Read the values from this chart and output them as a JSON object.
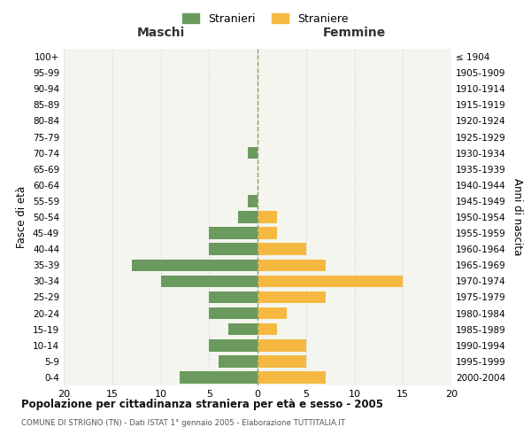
{
  "age_groups": [
    "0-4",
    "5-9",
    "10-14",
    "15-19",
    "20-24",
    "25-29",
    "30-34",
    "35-39",
    "40-44",
    "45-49",
    "50-54",
    "55-59",
    "60-64",
    "65-69",
    "70-74",
    "75-79",
    "80-84",
    "85-89",
    "90-94",
    "95-99",
    "100+"
  ],
  "birth_years": [
    "2000-2004",
    "1995-1999",
    "1990-1994",
    "1985-1989",
    "1980-1984",
    "1975-1979",
    "1970-1974",
    "1965-1969",
    "1960-1964",
    "1955-1959",
    "1950-1954",
    "1945-1949",
    "1940-1944",
    "1935-1939",
    "1930-1934",
    "1925-1929",
    "1920-1924",
    "1915-1919",
    "1910-1914",
    "1905-1909",
    "≤ 1904"
  ],
  "maschi": [
    8,
    4,
    5,
    3,
    5,
    5,
    10,
    13,
    5,
    5,
    2,
    1,
    0,
    0,
    1,
    0,
    0,
    0,
    0,
    0,
    0
  ],
  "femmine": [
    7,
    5,
    5,
    2,
    3,
    7,
    15,
    7,
    5,
    2,
    2,
    0,
    0,
    0,
    0,
    0,
    0,
    0,
    0,
    0,
    0
  ],
  "maschi_color": "#6a9a5e",
  "femmine_color": "#f5b942",
  "title": "Popolazione per cittadinanza straniera per età e sesso - 2005",
  "subtitle": "COMUNE DI STRIGNO (TN) - Dati ISTAT 1° gennaio 2005 - Elaborazione TUTTITALIA.IT",
  "xlabel_left": "Maschi",
  "xlabel_right": "Femmine",
  "ylabel_left": "Fasce di età",
  "ylabel_right": "Anni di nascita",
  "xlim": 20,
  "legend_stranieri": "Stranieri",
  "legend_straniere": "Straniere",
  "bg_color": "#f5f5f0",
  "grid_color": "#cccccc",
  "bar_height": 0.75
}
